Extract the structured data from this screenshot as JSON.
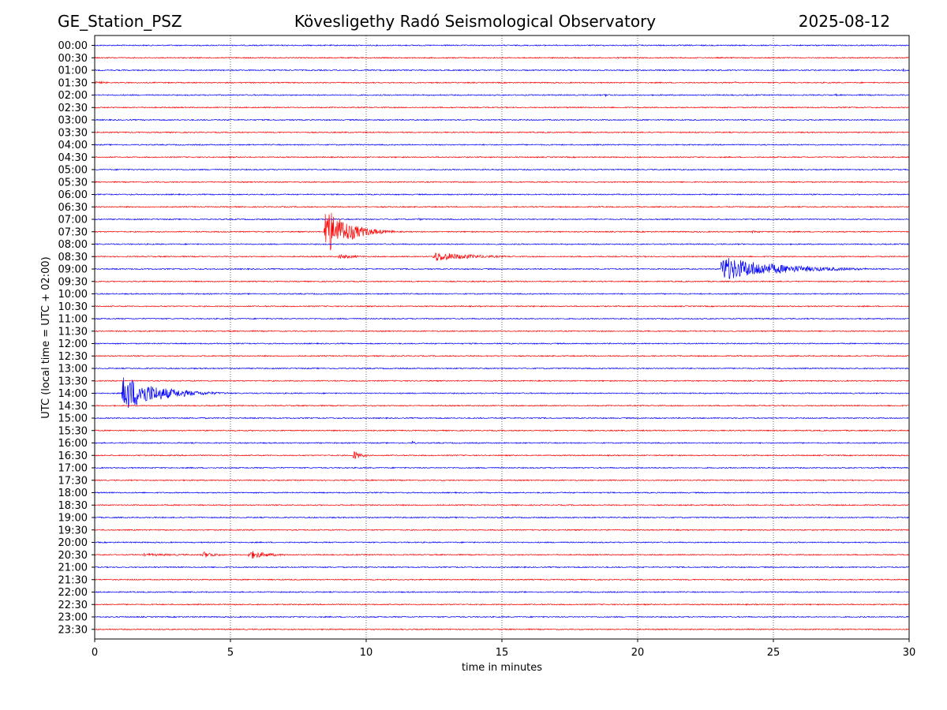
{
  "header": {
    "station": "GE_Station_PSZ",
    "observatory": "Kövesligethy Radó Seismological Observatory",
    "date": "2025-08-12"
  },
  "chart_data": {
    "type": "line",
    "title": "Kövesligethy Radó Seismological Observatory",
    "xlabel": "time in minutes",
    "ylabel": "UTC (local time = UTC + 02:00)",
    "xlim": [
      0,
      30
    ],
    "x_ticks": [
      "0",
      "5",
      "10",
      "15",
      "20",
      "25",
      "30"
    ],
    "x_tick_values": [
      0,
      5,
      10,
      15,
      20,
      25,
      30
    ],
    "grid": "vertical dotted at x ticks",
    "legend": "none",
    "colors": {
      "even_rows": "#0000ff",
      "odd_rows": "#ff0000",
      "frame": "#000000",
      "grid": "#000000"
    },
    "rows": [
      {
        "label": "00:00",
        "events": []
      },
      {
        "label": "00:30",
        "events": []
      },
      {
        "label": "01:00",
        "events": [
          {
            "t": 29.8,
            "amp": 0.15,
            "dur": 0.3
          }
        ]
      },
      {
        "label": "01:30",
        "events": [
          {
            "t": 0.0,
            "amp": 0.12,
            "dur": 2.2
          },
          {
            "t": 23.6,
            "amp": 0.1,
            "dur": 0.8
          }
        ]
      },
      {
        "label": "02:00",
        "events": [
          {
            "t": 18.8,
            "amp": 0.12,
            "dur": 1.2
          },
          {
            "t": 27.3,
            "amp": 0.1,
            "dur": 0.4
          }
        ]
      },
      {
        "label": "02:30",
        "events": []
      },
      {
        "label": "03:00",
        "events": []
      },
      {
        "label": "03:30",
        "events": [
          {
            "t": 16.6,
            "amp": 0.06,
            "dur": 0.3
          }
        ]
      },
      {
        "label": "04:00",
        "events": []
      },
      {
        "label": "04:30",
        "events": [
          {
            "t": 24.6,
            "amp": 0.06,
            "dur": 0.6
          }
        ]
      },
      {
        "label": "05:00",
        "events": [
          {
            "t": 21.6,
            "amp": 0.06,
            "dur": 3.0
          }
        ]
      },
      {
        "label": "05:30",
        "events": []
      },
      {
        "label": "06:00",
        "events": []
      },
      {
        "label": "06:30",
        "events": []
      },
      {
        "label": "07:00",
        "events": [
          {
            "t": 11.9,
            "amp": 0.1,
            "dur": 1.6
          }
        ]
      },
      {
        "label": "07:30",
        "events": [
          {
            "t": 8.5,
            "amp": 2.3,
            "dur": 2.6
          },
          {
            "t": 24.2,
            "amp": 0.12,
            "dur": 1.6
          }
        ]
      },
      {
        "label": "08:00",
        "events": []
      },
      {
        "label": "08:30",
        "events": [
          {
            "t": 9.0,
            "amp": 0.22,
            "dur": 2.5
          },
          {
            "t": 12.5,
            "amp": 0.45,
            "dur": 4.6
          }
        ]
      },
      {
        "label": "09:00",
        "events": [
          {
            "t": 23.1,
            "amp": 1.15,
            "dur": 6.5
          }
        ]
      },
      {
        "label": "09:30",
        "events": []
      },
      {
        "label": "10:00",
        "events": []
      },
      {
        "label": "10:30",
        "events": []
      },
      {
        "label": "11:00",
        "events": []
      },
      {
        "label": "11:30",
        "events": []
      },
      {
        "label": "12:00",
        "events": []
      },
      {
        "label": "12:30",
        "events": []
      },
      {
        "label": "13:00",
        "events": []
      },
      {
        "label": "13:30",
        "events": []
      },
      {
        "label": "14:00",
        "events": [
          {
            "t": 1.05,
            "amp": 1.7,
            "dur": 4.0
          }
        ]
      },
      {
        "label": "14:30",
        "events": []
      },
      {
        "label": "15:00",
        "events": [
          {
            "t": 3.9,
            "amp": 0.1,
            "dur": 0.8
          }
        ]
      },
      {
        "label": "15:30",
        "events": [
          {
            "t": 29.3,
            "amp": 0.1,
            "dur": 0.7
          }
        ]
      },
      {
        "label": "16:00",
        "events": [
          {
            "t": 11.7,
            "amp": 0.2,
            "dur": 0.4
          }
        ]
      },
      {
        "label": "16:30",
        "events": [
          {
            "t": 9.55,
            "amp": 0.45,
            "dur": 0.9
          }
        ]
      },
      {
        "label": "17:00",
        "events": [
          {
            "t": 29.0,
            "amp": 0.1,
            "dur": 1.0
          }
        ]
      },
      {
        "label": "17:30",
        "events": []
      },
      {
        "label": "18:00",
        "events": []
      },
      {
        "label": "18:30",
        "events": []
      },
      {
        "label": "19:00",
        "events": [
          {
            "t": 18.7,
            "amp": 0.08,
            "dur": 0.5
          }
        ]
      },
      {
        "label": "19:30",
        "events": []
      },
      {
        "label": "20:00",
        "events": []
      },
      {
        "label": "20:30",
        "events": [
          {
            "t": 1.8,
            "amp": 0.12,
            "dur": 8.0
          },
          {
            "t": 4.0,
            "amp": 0.3,
            "dur": 1.6
          },
          {
            "t": 5.7,
            "amp": 0.42,
            "dur": 2.2
          }
        ]
      },
      {
        "label": "21:00",
        "events": []
      },
      {
        "label": "21:30",
        "events": [
          {
            "t": 6.7,
            "amp": 0.06,
            "dur": 0.6
          }
        ]
      },
      {
        "label": "22:00",
        "events": []
      },
      {
        "label": "22:30",
        "events": []
      },
      {
        "label": "23:00",
        "events": []
      },
      {
        "label": "23:30",
        "events": []
      }
    ]
  }
}
